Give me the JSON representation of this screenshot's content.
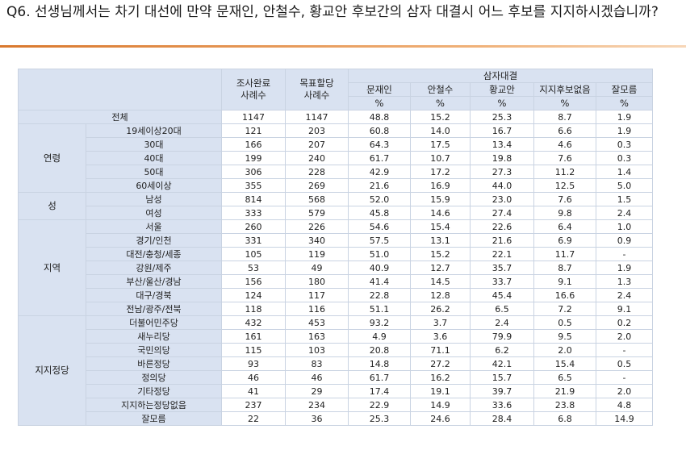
{
  "question": "Q6. 선생님께서는 차기 대선에 만약 문재인, 안철수, 황교안 후보간의 삼자 대결시 어느 후보를 지지하시겠습니까?",
  "header": {
    "completed": "조사완료\n사례수",
    "target": "목표할당\n사례수",
    "group_title": "삼자대결",
    "candidates": [
      "문재인",
      "안철수",
      "황교안",
      "지지후보없음",
      "잘모름"
    ],
    "unit": "%"
  },
  "total": {
    "label": "전체",
    "values": [
      "1147",
      "1147",
      "48.8",
      "15.2",
      "25.3",
      "8.7",
      "1.9"
    ]
  },
  "groups": [
    {
      "name": "연령",
      "rows": [
        {
          "label": "19세이상20대",
          "values": [
            "121",
            "203",
            "60.8",
            "14.0",
            "16.7",
            "6.6",
            "1.9"
          ]
        },
        {
          "label": "30대",
          "values": [
            "166",
            "207",
            "64.3",
            "17.5",
            "13.4",
            "4.6",
            "0.3"
          ]
        },
        {
          "label": "40대",
          "values": [
            "199",
            "240",
            "61.7",
            "10.7",
            "19.8",
            "7.6",
            "0.3"
          ]
        },
        {
          "label": "50대",
          "values": [
            "306",
            "228",
            "42.9",
            "17.2",
            "27.3",
            "11.2",
            "1.4"
          ]
        },
        {
          "label": "60세이상",
          "values": [
            "355",
            "269",
            "21.6",
            "16.9",
            "44.0",
            "12.5",
            "5.0"
          ]
        }
      ]
    },
    {
      "name": "성",
      "rows": [
        {
          "label": "남성",
          "values": [
            "814",
            "568",
            "52.0",
            "15.9",
            "23.0",
            "7.6",
            "1.5"
          ]
        },
        {
          "label": "여성",
          "values": [
            "333",
            "579",
            "45.8",
            "14.6",
            "27.4",
            "9.8",
            "2.4"
          ]
        }
      ]
    },
    {
      "name": "지역",
      "rows": [
        {
          "label": "서울",
          "values": [
            "260",
            "226",
            "54.6",
            "15.4",
            "22.6",
            "6.4",
            "1.0"
          ]
        },
        {
          "label": "경기/인천",
          "values": [
            "331",
            "340",
            "57.5",
            "13.1",
            "21.6",
            "6.9",
            "0.9"
          ]
        },
        {
          "label": "대전/충청/세종",
          "values": [
            "105",
            "119",
            "51.0",
            "15.2",
            "22.1",
            "11.7",
            "-"
          ]
        },
        {
          "label": "강원/제주",
          "values": [
            "53",
            "49",
            "40.9",
            "12.7",
            "35.7",
            "8.7",
            "1.9"
          ]
        },
        {
          "label": "부산/울산/경남",
          "values": [
            "156",
            "180",
            "41.4",
            "14.5",
            "33.7",
            "9.1",
            "1.3"
          ]
        },
        {
          "label": "대구/경북",
          "values": [
            "124",
            "117",
            "22.8",
            "12.8",
            "45.4",
            "16.6",
            "2.4"
          ]
        },
        {
          "label": "전남/광주/전북",
          "values": [
            "118",
            "116",
            "51.1",
            "26.2",
            "6.5",
            "7.2",
            "9.1"
          ]
        }
      ]
    },
    {
      "name": "지지정당",
      "rows": [
        {
          "label": "더불어민주당",
          "values": [
            "432",
            "453",
            "93.2",
            "3.7",
            "2.4",
            "0.5",
            "0.2"
          ]
        },
        {
          "label": "새누리당",
          "values": [
            "161",
            "163",
            "4.9",
            "3.6",
            "79.9",
            "9.5",
            "2.0"
          ]
        },
        {
          "label": "국민의당",
          "values": [
            "115",
            "103",
            "20.8",
            "71.1",
            "6.2",
            "2.0",
            "-"
          ]
        },
        {
          "label": "바른정당",
          "values": [
            "93",
            "83",
            "14.8",
            "27.2",
            "42.1",
            "15.4",
            "0.5"
          ]
        },
        {
          "label": "정의당",
          "values": [
            "46",
            "46",
            "61.7",
            "16.2",
            "15.7",
            "6.5",
            "-"
          ]
        },
        {
          "label": "기타정당",
          "values": [
            "41",
            "29",
            "17.4",
            "19.1",
            "39.7",
            "21.9",
            "2.0"
          ]
        },
        {
          "label": "지지하는정당없음",
          "values": [
            "237",
            "234",
            "22.9",
            "14.9",
            "33.6",
            "23.8",
            "4.8"
          ]
        },
        {
          "label": "잘모름",
          "values": [
            "22",
            "36",
            "25.3",
            "24.6",
            "28.4",
            "6.8",
            "14.9"
          ]
        }
      ]
    }
  ]
}
